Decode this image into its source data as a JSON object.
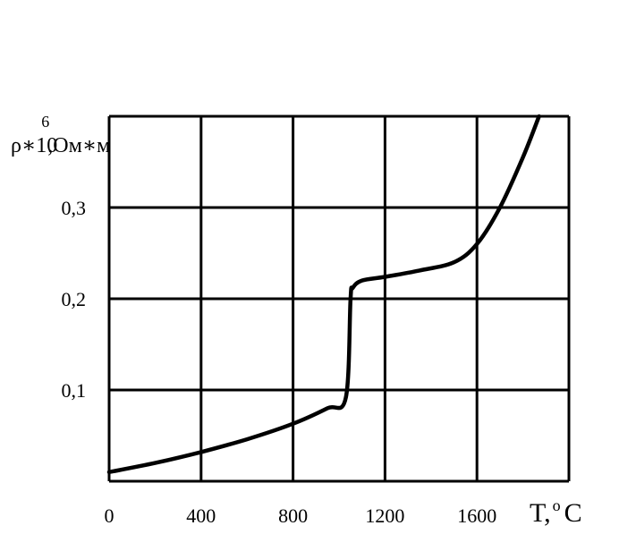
{
  "chart_data": {
    "type": "line",
    "ylabel": "ρ∗10",
    "ylabel_exponent": "6",
    "ylabel_unit": ",Ом∗м",
    "xlabel": "T,",
    "xlabel_degree": "o",
    "xlabel_unit": "C",
    "x_ticks": [
      "0",
      "400",
      "800",
      "1200",
      "1600"
    ],
    "y_ticks": [
      "0,1",
      "0,2",
      "0,3"
    ],
    "xlim": [
      0,
      2000
    ],
    "ylim": [
      0,
      0.4
    ],
    "grid": true,
    "series": [
      {
        "x": [
          0,
          200,
          400,
          600,
          800,
          950,
          1030,
          1050,
          1060,
          1100,
          1200,
          1350,
          1500,
          1600,
          1700,
          1800,
          1870
        ],
        "y": [
          0.01,
          0.02,
          0.032,
          0.046,
          0.063,
          0.08,
          0.092,
          0.2,
          0.212,
          0.22,
          0.224,
          0.231,
          0.24,
          0.26,
          0.3,
          0.355,
          0.4
        ]
      }
    ]
  }
}
